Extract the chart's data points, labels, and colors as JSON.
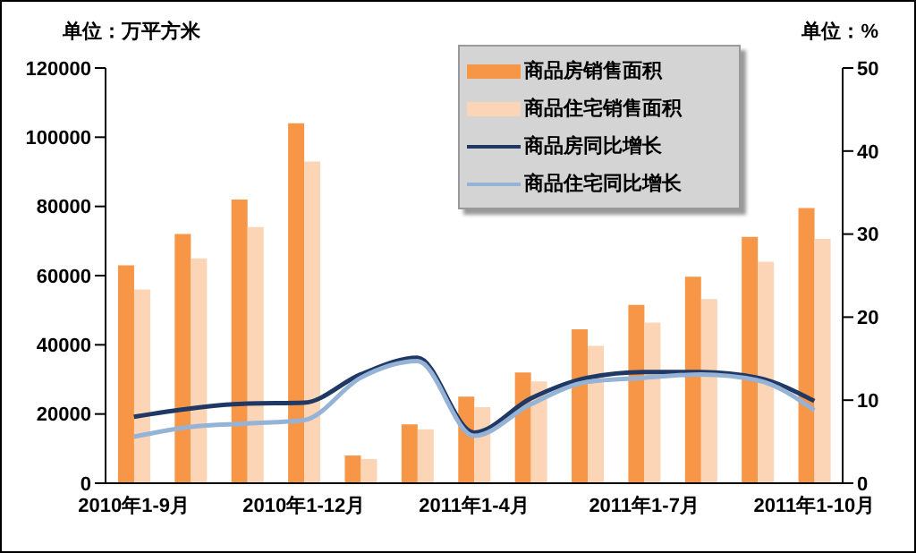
{
  "chart_data": {
    "type": "bar",
    "ylabel": "单位：万平方米",
    "y2label": "单位：%",
    "categories": [
      "2010年1-9月",
      null,
      null,
      "2010年1-12月",
      null,
      null,
      "2011年1-4月",
      null,
      null,
      "2011年1-7月",
      null,
      null,
      "2011年1-10月"
    ],
    "series": [
      {
        "name": "商品房销售面积",
        "color": "#f79646",
        "values": [
          63000,
          72000,
          82000,
          104000,
          8000,
          17000,
          25000,
          32000,
          44500,
          51500,
          59700,
          71200,
          79500
        ]
      },
      {
        "name": "商品住宅销售面积",
        "color": "#fbd5b5",
        "values": [
          56000,
          65000,
          74000,
          93000,
          7000,
          15600,
          22000,
          29400,
          39700,
          46400,
          53200,
          64000,
          70600
        ]
      },
      {
        "name": "商品房同比增长",
        "type": "line",
        "axis": "y2",
        "color": "#1f3864",
        "values": [
          8.0,
          9.0,
          9.6,
          9.7,
          13.1,
          15.1,
          6.1,
          10.2,
          12.7,
          13.4,
          13.4,
          12.7,
          9.9
        ]
      },
      {
        "name": "商品住宅同比增长",
        "type": "line",
        "axis": "y2",
        "color": "#95b3d7",
        "values": [
          5.6,
          6.8,
          7.2,
          7.6,
          12.7,
          14.7,
          5.7,
          9.5,
          12.2,
          12.7,
          13.1,
          12.4,
          8.8
        ]
      }
    ],
    "ylim": [
      0,
      120000
    ],
    "yticks": [
      0,
      20000,
      40000,
      60000,
      80000,
      100000,
      120000
    ],
    "y2lim": [
      0,
      50
    ],
    "y2ticks": [
      0,
      10,
      20,
      30,
      40,
      50
    ],
    "legend": "top",
    "marker": "none"
  }
}
